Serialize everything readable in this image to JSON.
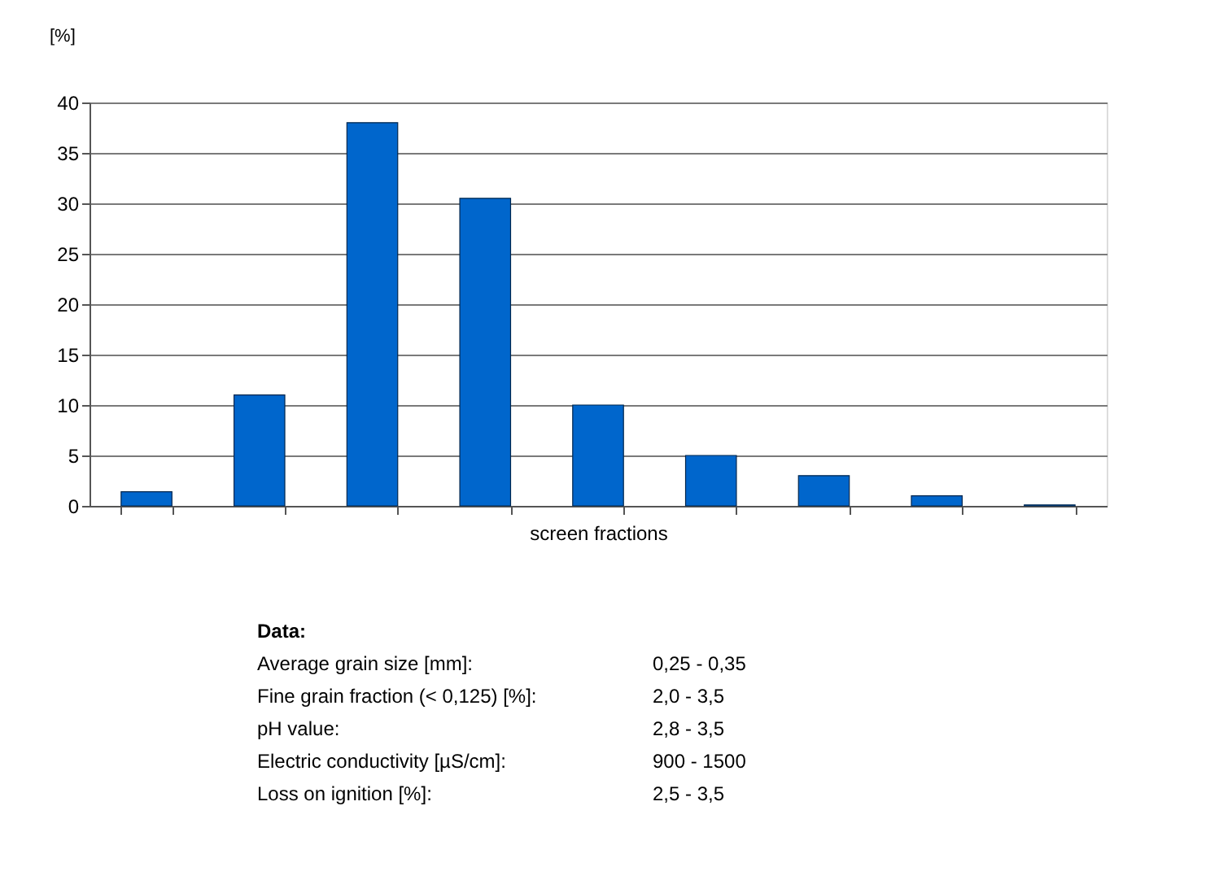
{
  "chart_data": {
    "type": "bar",
    "ylabel": "[%]",
    "xlabel": "screen fractions",
    "categories": [
      null,
      null,
      null,
      null,
      null,
      null,
      null,
      null,
      null
    ],
    "values": [
      1.4,
      11,
      38,
      30.5,
      10,
      5,
      3,
      1,
      0.1
    ],
    "color": "#0066cc",
    "ylim": [
      0,
      40
    ],
    "yticks": [
      0,
      5,
      10,
      15,
      20,
      25,
      30,
      35,
      40
    ],
    "grid": "y",
    "tick_labels": "y",
    "annotations": [
      "Data:",
      "Average grain size [mm]:",
      "0,25 - 0,35",
      "Fine grain fraction (< 0,125) [%]:",
      "2,0 - 3,5",
      "pH value:",
      "2,8 - 3,5",
      "Electric conductivity [µS/cm]:",
      "900 - 1500",
      "Loss on ignition [%]:",
      "2,5 - 3,5"
    ]
  }
}
